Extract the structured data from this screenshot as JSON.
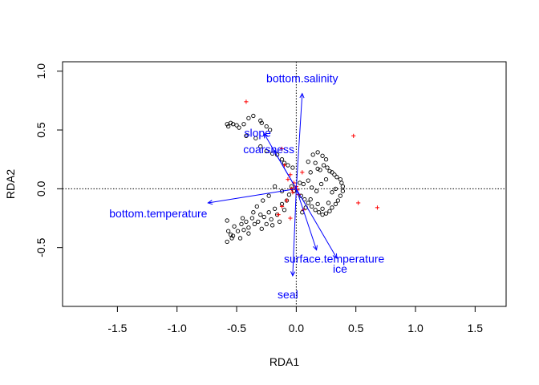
{
  "chart_data": {
    "type": "scatter",
    "title": "",
    "xlabel": "RDA1",
    "ylabel": "RDA2",
    "xlim": [
      -1.96,
      1.76
    ],
    "ylim": [
      -1.0,
      1.08
    ],
    "x_ticks": [
      -1.5,
      -1.0,
      -0.5,
      0.0,
      0.5,
      1.0,
      1.5
    ],
    "x_tick_labels": [
      "-1.5",
      "-1.0",
      "-0.5",
      "0.0",
      "0.5",
      "1.0",
      "1.5"
    ],
    "y_ticks": [
      -0.5,
      0.0,
      0.5,
      1.0
    ],
    "y_tick_labels": [
      "-0.5",
      "0.0",
      "0.5",
      "1.0"
    ],
    "grid": false,
    "reference_lines": {
      "x": 0.0,
      "y": 0.0,
      "style": "dotted"
    },
    "colors": {
      "sites": "#000000",
      "species": "#ff0000",
      "vectors": "#0000ff"
    },
    "sites": [
      [
        -0.58,
        0.55
      ],
      [
        -0.57,
        0.53
      ],
      [
        -0.55,
        0.56
      ],
      [
        -0.53,
        0.55
      ],
      [
        -0.5,
        0.54
      ],
      [
        -0.48,
        0.52
      ],
      [
        -0.44,
        0.55
      ],
      [
        -0.4,
        0.6
      ],
      [
        -0.36,
        0.62
      ],
      [
        -0.3,
        0.58
      ],
      [
        -0.29,
        0.56
      ],
      [
        -0.25,
        0.53
      ],
      [
        -0.22,
        0.5
      ],
      [
        -0.42,
        0.45
      ],
      [
        -0.34,
        0.43
      ],
      [
        -0.3,
        0.36
      ],
      [
        -0.25,
        0.32
      ],
      [
        -0.2,
        0.3
      ],
      [
        -0.16,
        0.29
      ],
      [
        -0.12,
        0.25
      ],
      [
        -0.1,
        0.22
      ],
      [
        -0.07,
        0.2
      ],
      [
        -0.03,
        0.18
      ],
      [
        0.1,
        0.23
      ],
      [
        0.14,
        0.29
      ],
      [
        0.18,
        0.31
      ],
      [
        0.22,
        0.28
      ],
      [
        0.25,
        0.25
      ],
      [
        0.16,
        0.22
      ],
      [
        0.18,
        0.17
      ],
      [
        0.12,
        0.14
      ],
      [
        0.2,
        0.16
      ],
      [
        0.23,
        0.2
      ],
      [
        0.26,
        0.18
      ],
      [
        0.28,
        0.15
      ],
      [
        0.3,
        0.14
      ],
      [
        0.32,
        0.12
      ],
      [
        0.34,
        0.1
      ],
      [
        0.37,
        0.08
      ],
      [
        0.38,
        0.05
      ],
      [
        0.39,
        0.02
      ],
      [
        0.39,
        -0.02
      ],
      [
        0.37,
        -0.06
      ],
      [
        0.35,
        -0.1
      ],
      [
        0.33,
        -0.13
      ],
      [
        0.3,
        -0.16
      ],
      [
        0.28,
        -0.19
      ],
      [
        0.25,
        -0.21
      ],
      [
        0.22,
        -0.22
      ],
      [
        0.19,
        -0.2
      ],
      [
        0.16,
        -0.18
      ],
      [
        0.13,
        -0.15
      ],
      [
        0.1,
        -0.12
      ],
      [
        0.07,
        -0.09
      ],
      [
        0.04,
        -0.06
      ],
      [
        0.03,
        0.05
      ],
      [
        0.06,
        0.04
      ],
      [
        0.1,
        0.07
      ],
      [
        0.13,
        0.01
      ],
      [
        0.17,
        -0.02
      ],
      [
        0.21,
        0.04
      ],
      [
        0.25,
        0.08
      ],
      [
        0.3,
        -0.03
      ],
      [
        0.33,
        0.0
      ],
      [
        0.27,
        -0.12
      ],
      [
        0.22,
        -0.17
      ],
      [
        0.18,
        -0.13
      ],
      [
        0.12,
        -0.09
      ],
      [
        0.08,
        -0.16
      ],
      [
        0.05,
        -0.2
      ],
      [
        -0.58,
        -0.27
      ],
      [
        -0.57,
        -0.36
      ],
      [
        -0.55,
        -0.39
      ],
      [
        -0.54,
        -0.42
      ],
      [
        -0.58,
        -0.45
      ],
      [
        -0.53,
        -0.4
      ],
      [
        -0.47,
        -0.42
      ],
      [
        -0.45,
        -0.25
      ],
      [
        -0.46,
        -0.3
      ],
      [
        -0.44,
        -0.35
      ],
      [
        -0.42,
        -0.28
      ],
      [
        -0.4,
        -0.33
      ],
      [
        -0.4,
        -0.38
      ],
      [
        -0.37,
        -0.25
      ],
      [
        -0.35,
        -0.3
      ],
      [
        -0.32,
        -0.28
      ],
      [
        -0.3,
        -0.22
      ],
      [
        -0.29,
        -0.34
      ],
      [
        -0.27,
        -0.24
      ],
      [
        -0.25,
        -0.3
      ],
      [
        -0.23,
        -0.2
      ],
      [
        -0.21,
        -0.26
      ],
      [
        -0.2,
        -0.31
      ],
      [
        -0.18,
        -0.17
      ],
      [
        -0.16,
        -0.22
      ],
      [
        -0.14,
        -0.28
      ],
      [
        -0.12,
        -0.13
      ],
      [
        -0.1,
        -0.18
      ],
      [
        -0.08,
        -0.1
      ],
      [
        -0.06,
        -0.05
      ],
      [
        -0.04,
        0.02
      ],
      [
        -0.02,
        -0.02
      ],
      [
        -0.12,
        -0.02
      ],
      [
        -0.18,
        0.02
      ],
      [
        -0.23,
        -0.06
      ],
      [
        -0.28,
        -0.1
      ],
      [
        -0.33,
        -0.15
      ],
      [
        -0.36,
        -0.2
      ],
      [
        -0.52,
        -0.32
      ],
      [
        -0.49,
        -0.36
      ]
    ],
    "species": [
      [
        -0.42,
        0.74
      ],
      [
        0.48,
        0.45
      ],
      [
        0.52,
        -0.12
      ],
      [
        0.68,
        -0.16
      ],
      [
        -0.12,
        0.34
      ],
      [
        0.05,
        0.14
      ],
      [
        -0.05,
        0.12
      ],
      [
        -0.07,
        0.08
      ],
      [
        -0.02,
        0.05
      ],
      [
        0.0,
        0.02
      ],
      [
        0.01,
        -0.01
      ],
      [
        -0.03,
        -0.03
      ],
      [
        0.02,
        -0.05
      ],
      [
        -0.04,
        0.0
      ],
      [
        -0.01,
        0.01
      ],
      [
        -0.08,
        -0.1
      ],
      [
        -0.12,
        -0.15
      ],
      [
        -0.15,
        -0.22
      ],
      [
        -0.05,
        -0.25
      ],
      [
        0.06,
        -0.18
      ],
      [
        -0.1,
        0.2
      ]
    ],
    "vectors": [
      {
        "label": "bottom.salinity",
        "x": 0.05,
        "y": 0.81
      },
      {
        "label": "slope",
        "x": -0.27,
        "y": 0.47
      },
      {
        "label": "coarsness",
        "x": -0.19,
        "y": 0.33
      },
      {
        "label": "bottom.temperature",
        "x": -0.74,
        "y": -0.12
      },
      {
        "label": "surface.temperature",
        "x": 0.17,
        "y": -0.52
      },
      {
        "label": "ice",
        "x": 0.34,
        "y": -0.59
      },
      {
        "label": "seal",
        "x": -0.03,
        "y": -0.74
      }
    ]
  }
}
